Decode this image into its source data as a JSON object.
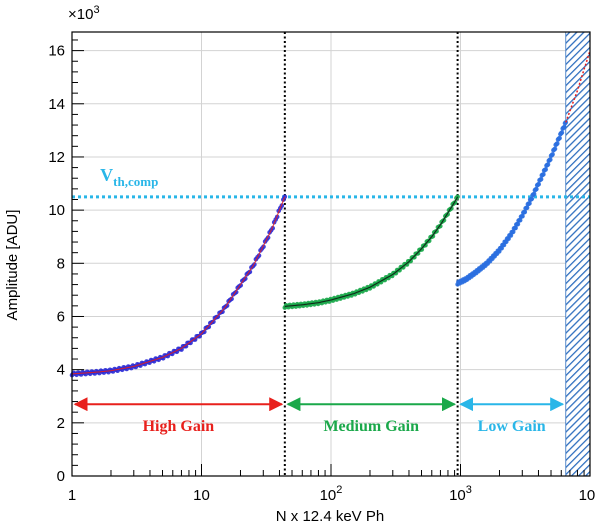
{
  "chart_data": {
    "type": "scatter",
    "title": "",
    "xlabel": "N x 12.4 keV Ph",
    "ylabel": "Amplitude [ADU]",
    "x_scale": "log",
    "xlim": [
      1,
      10000
    ],
    "ylim": [
      0,
      16700
    ],
    "y_multiplier_label": {
      "base": "×10",
      "exp": "3"
    },
    "y_ticks": [
      0,
      2000,
      4000,
      6000,
      8000,
      10000,
      12000,
      14000,
      16000
    ],
    "y_tick_labels": [
      "0",
      "2",
      "4",
      "6",
      "8",
      "10",
      "12",
      "14",
      "16"
    ],
    "x_major_ticks": [
      1,
      10,
      100,
      1000,
      10000
    ],
    "x_tick_labels": [
      {
        "base": "1",
        "exp": ""
      },
      {
        "base": "10",
        "exp": ""
      },
      {
        "base": "10",
        "exp": "2"
      },
      {
        "base": "10",
        "exp": "3"
      },
      {
        "base": "10",
        "exp": "4"
      }
    ],
    "grid": true,
    "threshold": {
      "y": 10500,
      "label_main": "V",
      "label_sub": "th,comp",
      "color": "#29b6e8"
    },
    "gain_boundaries": [
      44,
      950
    ],
    "saturated_region": {
      "x_start": 6500,
      "x_end": 10000,
      "color": "#2f6fbf"
    },
    "regions": [
      {
        "label": "High Gain",
        "x_start": 1,
        "x_end": 44,
        "color": "#e8201c"
      },
      {
        "label": "Medium Gain",
        "x_start": 44,
        "x_end": 950,
        "color": "#1aa84a"
      },
      {
        "label": "Low Gain",
        "x_start": 950,
        "x_end": 6500,
        "color": "#29b6e8"
      }
    ],
    "series": [
      {
        "fit_color": "#e8201c",
        "point_color": "#2b2bd6",
        "x": [
          1,
          1.5,
          2,
          3,
          5,
          7,
          10,
          15,
          20,
          25,
          30,
          35,
          40,
          44
        ],
        "y": [
          3840,
          3900,
          3960,
          4120,
          4460,
          4800,
          5350,
          6300,
          7200,
          7900,
          8650,
          9300,
          10000,
          10500
        ]
      },
      {
        "fit_color": "#111111",
        "point_color": "#1aa84a",
        "x": [
          44,
          60,
          80,
          100,
          150,
          200,
          300,
          400,
          500,
          600,
          700,
          800,
          900,
          950
        ],
        "y": [
          6380,
          6440,
          6520,
          6620,
          6860,
          7100,
          7580,
          8060,
          8550,
          9000,
          9450,
          9900,
          10300,
          10500
        ]
      },
      {
        "fit_color": "#e8201c",
        "point_color": "#2b6fe0",
        "x": [
          950,
          1100,
          1300,
          1600,
          2000,
          2500,
          3000,
          3500,
          4000,
          5000,
          6500,
          8000,
          10000
        ],
        "y": [
          7250,
          7400,
          7650,
          8000,
          8500,
          9150,
          9800,
          10400,
          11000,
          12000,
          13300,
          14500,
          16000
        ]
      }
    ]
  }
}
